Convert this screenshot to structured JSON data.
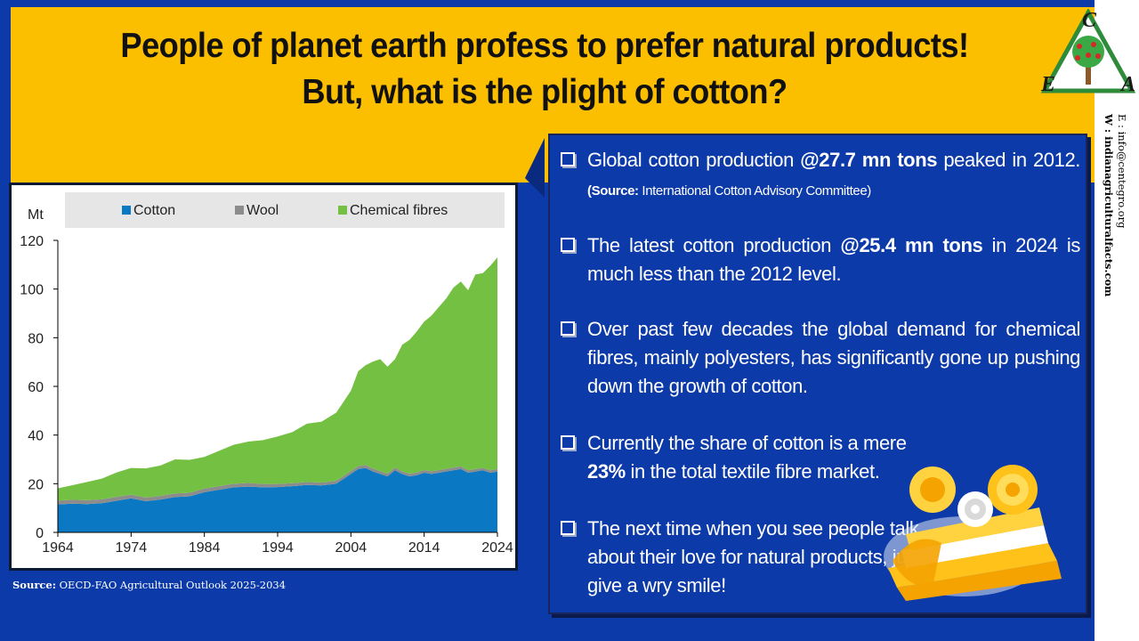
{
  "title": {
    "line1": "People of planet earth profess to prefer natural products!",
    "line2": "But, what is the plight of cotton?"
  },
  "logo": {
    "letters": [
      "C",
      "E",
      "A"
    ],
    "icon": "tree-triangle-logo"
  },
  "contact": {
    "email": "E : info@centegro.org",
    "web": "W : indianagriculturalfacts.com"
  },
  "source_note": {
    "label": "Source:",
    "text": " OECD-FAO Agricultural Outlook 2025-2034"
  },
  "bullets": [
    {
      "parts": [
        "Global cotton production ",
        "@27.7 mn tons",
        " peaked in 2012. ",
        "(Source:",
        " International Cotton Advisory Committee)"
      ]
    },
    {
      "parts": [
        "The latest cotton production ",
        "@25.4 mn tons",
        " in 2024 is much less than the 2012 level."
      ]
    },
    {
      "parts": [
        "Over past few decades the global demand for chemical fibres, mainly polyesters, has significantly gone up pushing down the growth of cotton."
      ]
    },
    {
      "parts": [
        "Currently the share of cotton is a mere ",
        "23%",
        " in the total textile fibre market."
      ]
    },
    {
      "parts": [
        "The next time when you see people talk about their love for natural products, just give a wry smile!"
      ]
    }
  ],
  "colors": {
    "cotton": "#0a78c2",
    "wool": "#8c8c8c",
    "chemical": "#74c043",
    "yellow": "#fcbf00",
    "blue": "#0d3aa9"
  },
  "chart_data": {
    "type": "area",
    "stacked": true,
    "ylabel": "Mt",
    "ylim": [
      0,
      120
    ],
    "yticks": [
      0,
      20,
      40,
      60,
      80,
      100,
      120
    ],
    "xticks": [
      1964,
      1974,
      1984,
      1994,
      2004,
      2014,
      2024
    ],
    "legend_position": "top",
    "x": [
      1964,
      1966,
      1968,
      1970,
      1972,
      1974,
      1976,
      1978,
      1980,
      1982,
      1984,
      1986,
      1988,
      1990,
      1992,
      1994,
      1996,
      1998,
      2000,
      2002,
      2004,
      2005,
      2006,
      2007,
      2008,
      2009,
      2010,
      2011,
      2012,
      2013,
      2014,
      2015,
      2016,
      2017,
      2018,
      2019,
      2020,
      2021,
      2022,
      2023,
      2024
    ],
    "series": [
      {
        "name": "Cotton",
        "values": [
          11.5,
          11.8,
          11.6,
          12,
          13,
          14,
          12.8,
          13.5,
          14.5,
          14.8,
          16.5,
          17.5,
          18.5,
          18.8,
          18.5,
          18.6,
          19,
          19.5,
          19.3,
          20,
          24,
          26,
          26.5,
          25,
          24,
          23,
          25.5,
          24,
          23,
          23.5,
          24.5,
          24,
          24.5,
          25,
          25.5,
          26,
          24.5,
          25,
          25.5,
          24.5,
          25
        ]
      },
      {
        "name": "Wool",
        "values": [
          1.6,
          1.6,
          1.6,
          1.6,
          1.6,
          1.5,
          1.5,
          1.5,
          1.5,
          1.5,
          1.5,
          1.5,
          1.5,
          1.5,
          1.4,
          1.3,
          1.2,
          1.2,
          1.2,
          1.2,
          1.2,
          1.2,
          1.2,
          1.2,
          1.2,
          1.1,
          1.1,
          1.1,
          1.1,
          1.1,
          1.1,
          1.1,
          1.1,
          1.1,
          1.1,
          1.1,
          1.0,
          1.0,
          1.0,
          1.0,
          1.0
        ]
      },
      {
        "name": "Chemical fibres",
        "values": [
          5,
          6,
          7.5,
          8.5,
          10,
          11,
          12,
          12.5,
          14,
          13.5,
          13,
          14.5,
          16,
          17,
          18,
          19.5,
          21,
          24,
          25,
          28,
          33,
          39,
          41,
          44,
          46,
          44,
          44.5,
          52,
          55,
          58,
          61,
          64,
          67,
          70,
          74,
          76,
          74,
          80,
          80,
          84,
          87
        ]
      }
    ]
  }
}
